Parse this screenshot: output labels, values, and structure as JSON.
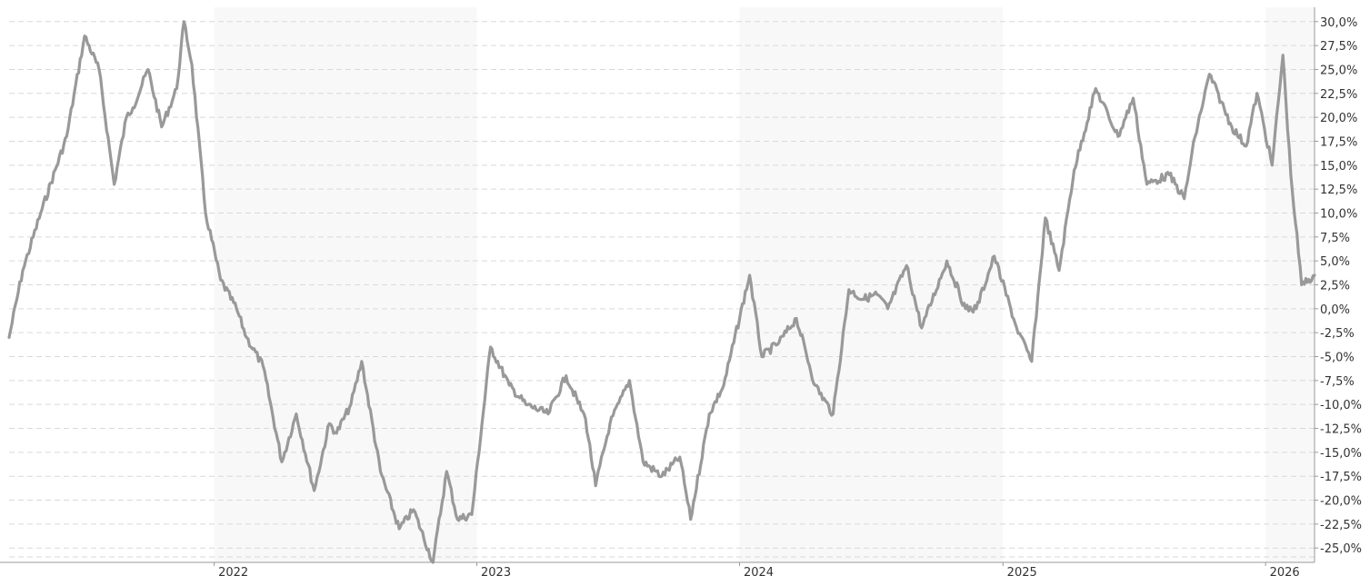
{
  "chart_data": {
    "type": "line",
    "title": "",
    "xlabel": "",
    "ylabel": "",
    "y_unit": "%",
    "ylim": [
      -26.5,
      31.5
    ],
    "y_ticks": [
      30,
      27.5,
      25,
      22.5,
      20,
      17.5,
      15,
      12.5,
      10,
      7.5,
      5,
      2.5,
      0,
      -2.5,
      -5,
      -7.5,
      -10,
      -12.5,
      -15,
      -17.5,
      -20,
      -22.5,
      -25
    ],
    "y_tick_labels": [
      "30,0%",
      "27,5%",
      "25,0%",
      "22,5%",
      "20,0%",
      "17,5%",
      "15,0%",
      "12,5%",
      "10,0%",
      "7,5%",
      "5,0%",
      "2,5%",
      "0,0%",
      "-2,5%",
      "-5,0%",
      "-7,5%",
      "-10,0%",
      "-12,5%",
      "-15,0%",
      "-17,5%",
      "-20,0%",
      "-22,5%",
      "-25,0%"
    ],
    "xlim": [
      "2021-03-22",
      "2026-03-10"
    ],
    "x_ticks": [
      "2022-01-01",
      "2023-01-01",
      "2024-01-01",
      "2025-01-01",
      "2026-01-01"
    ],
    "x_tick_labels": [
      "2022",
      "2023",
      "2024",
      "2025",
      "2026"
    ],
    "shaded_years": [
      "2022",
      "2024",
      "2026"
    ],
    "grid": true,
    "legend": "none",
    "colors": {
      "line": "#999999",
      "band": "#f8f8f8",
      "grid": "#d9d9d9",
      "text": "#333333"
    },
    "series": [
      {
        "x": [
          "2021-03-22",
          "2021-04-10",
          "2021-05-05",
          "2021-06-10",
          "2021-07-05",
          "2021-07-25",
          "2021-08-15",
          "2021-09-01",
          "2021-09-10",
          "2021-10-01",
          "2021-10-20",
          "2021-11-10",
          "2021-11-20",
          "2021-12-01",
          "2021-12-20",
          "2022-01-10",
          "2022-02-01",
          "2022-02-15",
          "2022-03-10",
          "2022-04-05",
          "2022-04-25",
          "2022-05-20",
          "2022-06-10",
          "2022-06-20",
          "2022-07-10",
          "2022-07-25",
          "2022-08-20",
          "2022-09-15",
          "2022-10-05",
          "2022-11-01",
          "2022-11-20",
          "2022-12-05",
          "2022-12-25",
          "2023-01-20",
          "2023-02-15",
          "2023-03-10",
          "2023-04-10",
          "2023-05-05",
          "2023-06-01",
          "2023-06-15",
          "2023-07-05",
          "2023-08-01",
          "2023-08-20",
          "2023-09-15",
          "2023-10-10",
          "2023-10-25",
          "2023-11-20",
          "2023-12-10",
          "2024-01-15",
          "2024-02-01",
          "2024-02-25",
          "2024-03-20",
          "2024-04-15",
          "2024-05-10",
          "2024-06-01",
          "2024-06-20",
          "2024-07-10",
          "2024-07-25",
          "2024-08-20",
          "2024-09-10",
          "2024-10-15",
          "2024-11-10",
          "2024-11-25",
          "2024-12-20",
          "2025-01-20",
          "2025-02-10",
          "2025-03-01",
          "2025-03-20",
          "2025-04-10",
          "2025-05-10",
          "2025-06-10",
          "2025-07-01",
          "2025-07-20",
          "2025-08-20",
          "2025-09-10",
          "2025-09-25",
          "2025-10-15",
          "2025-11-15",
          "2025-12-05",
          "2025-12-20",
          "2026-01-10",
          "2026-01-25",
          "2026-02-05",
          "2026-02-20",
          "2026-03-10"
        ],
        "y": [
          -3.0,
          4.0,
          10.0,
          18.0,
          28.5,
          25.0,
          13.0,
          20.0,
          21.0,
          25.0,
          19.0,
          23.0,
          30.0,
          25.5,
          10.0,
          3.0,
          0.0,
          -3.0,
          -6.0,
          -16.0,
          -11.0,
          -19.0,
          -12.0,
          -13.0,
          -10.0,
          -5.5,
          -17.0,
          -23.0,
          -21.0,
          -26.5,
          -17.0,
          -22.0,
          -21.5,
          -4.0,
          -8.0,
          -10.0,
          -11.0,
          -7.0,
          -11.5,
          -18.5,
          -12.0,
          -7.5,
          -16.0,
          -17.5,
          -15.5,
          -22.0,
          -11.0,
          -8.0,
          3.5,
          -5.0,
          -3.5,
          -1.0,
          -8.0,
          -11.0,
          2.0,
          1.0,
          1.5,
          0.0,
          4.5,
          -2.0,
          5.0,
          0.0,
          0.0,
          5.5,
          -2.0,
          -5.5,
          9.5,
          4.0,
          14.5,
          23.0,
          18.0,
          22.0,
          13.0,
          14.0,
          11.5,
          18.0,
          24.5,
          19.0,
          17.0,
          22.5,
          15.0,
          26.5,
          14.0,
          2.5,
          3.5
        ]
      }
    ]
  }
}
